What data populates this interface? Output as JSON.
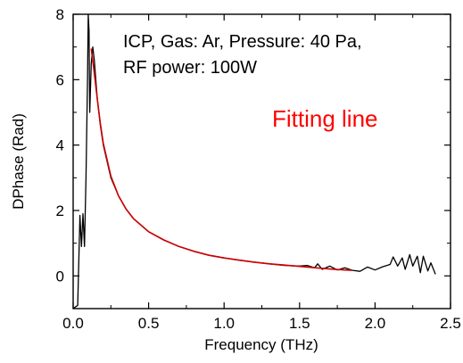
{
  "chart_data": {
    "type": "line",
    "xlabel": "Frequency (THz)",
    "ylabel": "DPhase (Rad)",
    "xlim": [
      0.0,
      2.5
    ],
    "ylim": [
      -1,
      8
    ],
    "x_ticks": [
      0.0,
      0.5,
      1.0,
      1.5,
      2.0,
      2.5
    ],
    "x_tick_labels": [
      "0.0",
      "0.5",
      "1.0",
      "1.5",
      "2.0",
      "2.5"
    ],
    "y_ticks": [
      0,
      2,
      4,
      6,
      8
    ],
    "y_tick_labels": [
      "0",
      "2",
      "4",
      "6",
      "8"
    ],
    "annotations": [
      "ICP, Gas: Ar, Pressure: 40 Pa,",
      "RF power: 100W",
      "Fitting line"
    ],
    "annotation_colors": [
      "#000000",
      "#000000",
      "#ff0000"
    ],
    "grid": false,
    "series": [
      {
        "color": "#000000",
        "x": [
          0.0,
          0.03,
          0.045,
          0.055,
          0.065,
          0.075,
          0.085,
          0.095,
          0.1,
          0.105,
          0.11,
          0.12,
          0.13,
          0.14,
          0.15,
          0.16,
          0.18,
          0.2,
          0.25,
          0.3,
          0.35,
          0.4,
          0.5,
          0.6,
          0.7,
          0.8,
          0.9,
          1.0,
          1.1,
          1.2,
          1.3,
          1.4,
          1.5,
          1.55,
          1.6,
          1.62,
          1.65,
          1.7,
          1.75,
          1.8,
          1.85,
          1.9,
          1.95,
          2.0,
          2.05,
          2.1,
          2.12,
          2.15,
          2.18,
          2.2,
          2.23,
          2.25,
          2.28,
          2.3,
          2.32,
          2.35,
          2.37,
          2.4
        ],
        "y": [
          -1.0,
          -0.9,
          1.85,
          0.9,
          1.9,
          0.9,
          3.0,
          6.0,
          8.0,
          7.5,
          5.0,
          6.5,
          7.0,
          6.6,
          6.0,
          5.4,
          4.6,
          4.0,
          3.0,
          2.45,
          2.05,
          1.75,
          1.35,
          1.1,
          0.9,
          0.75,
          0.63,
          0.55,
          0.48,
          0.42,
          0.37,
          0.32,
          0.3,
          0.32,
          0.25,
          0.37,
          0.2,
          0.3,
          0.18,
          0.25,
          0.17,
          0.14,
          0.27,
          0.18,
          0.28,
          0.35,
          0.58,
          0.3,
          0.55,
          0.2,
          0.65,
          0.3,
          0.6,
          0.1,
          0.6,
          0.15,
          0.4,
          0.05
        ]
      },
      {
        "color": "#cc0000",
        "x": [
          0.12,
          0.14,
          0.16,
          0.18,
          0.2,
          0.25,
          0.3,
          0.35,
          0.4,
          0.5,
          0.6,
          0.7,
          0.8,
          0.9,
          1.0,
          1.1,
          1.2,
          1.3,
          1.4,
          1.5,
          1.6,
          1.7,
          1.8,
          1.85
        ],
        "y": [
          6.95,
          6.2,
          5.4,
          4.65,
          4.05,
          3.05,
          2.45,
          2.05,
          1.75,
          1.35,
          1.1,
          0.9,
          0.75,
          0.63,
          0.55,
          0.48,
          0.42,
          0.37,
          0.33,
          0.29,
          0.25,
          0.21,
          0.18,
          0.17
        ]
      }
    ]
  }
}
